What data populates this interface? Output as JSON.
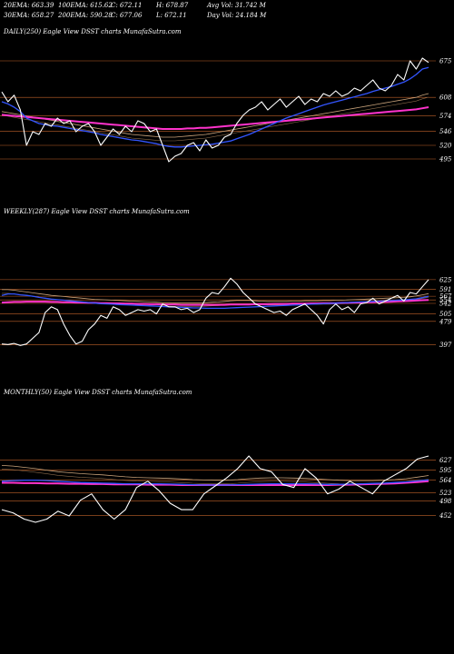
{
  "header": {
    "row1": [
      {
        "label": "20EMA: 663.39"
      },
      {
        "label": "100EMA: 615.62"
      },
      {
        "label": "C: 672.11"
      },
      {
        "label": "H: 678.87"
      },
      {
        "label": "Avg Vol: 31.742  M"
      }
    ],
    "row2": [
      {
        "label": "30EMA: 658.27"
      },
      {
        "label": "200EMA: 590.28"
      },
      {
        "label": "C: 677.06"
      },
      {
        "label": "L: 672.11"
      },
      {
        "label": "Day Vol: 24.184  M"
      }
    ]
  },
  "colors": {
    "background": "#000000",
    "price": "#ffffff",
    "ema_fast": "#3355ff",
    "ema_slow": "#ff33cc",
    "ema_mid": "#c8a27a",
    "grid": "#c0622a"
  },
  "chart_data": [
    {
      "type": "line",
      "title": "DAILY(250) Eagle   View  DSST charts MunafaSutra.com",
      "grid": true,
      "ylim": [
        470,
        695
      ],
      "yticks": [
        675,
        608,
        574,
        546,
        520,
        495
      ],
      "series": [
        {
          "name": "price",
          "values": [
            618,
            600,
            612,
            585,
            520,
            545,
            540,
            560,
            555,
            570,
            560,
            565,
            545,
            555,
            560,
            545,
            520,
            535,
            550,
            540,
            555,
            545,
            565,
            560,
            545,
            550,
            520,
            490,
            500,
            505,
            520,
            525,
            510,
            530,
            515,
            520,
            535,
            540,
            560,
            575,
            585,
            590,
            600,
            585,
            595,
            605,
            590,
            600,
            610,
            595,
            605,
            600,
            615,
            610,
            620,
            610,
            615,
            625,
            620,
            630,
            640,
            625,
            620,
            630,
            650,
            640,
            675,
            660,
            680,
            672
          ]
        },
        {
          "name": "ema20",
          "values": [
            600,
            596,
            590,
            582,
            570,
            565,
            560,
            558,
            556,
            555,
            553,
            551,
            549,
            547,
            545,
            543,
            540,
            538,
            536,
            534,
            532,
            530,
            529,
            527,
            525,
            523,
            520,
            518,
            517,
            517,
            518,
            519,
            520,
            521,
            522,
            524,
            526,
            528,
            532,
            536,
            540,
            545,
            550,
            555,
            560,
            565,
            570,
            574,
            578,
            582,
            586,
            590,
            594,
            597,
            600,
            603,
            606,
            609,
            612,
            615,
            619,
            622,
            625,
            628,
            632,
            636,
            642,
            650,
            660,
            663
          ]
        },
        {
          "name": "ema100",
          "values": [
            582,
            580,
            578,
            576,
            574,
            572,
            570,
            568,
            566,
            564,
            562,
            560,
            558,
            556,
            554,
            552,
            550,
            548,
            546,
            544,
            542,
            540,
            539,
            538,
            537,
            536,
            535,
            535,
            535,
            536,
            537,
            538,
            539,
            540,
            542,
            544,
            546,
            548,
            550,
            552,
            554,
            556,
            558,
            560,
            562,
            564,
            566,
            568,
            570,
            572,
            574,
            576,
            578,
            580,
            582,
            584,
            586,
            588,
            590,
            592,
            594,
            596,
            598,
            600,
            602,
            604,
            606,
            608,
            612,
            615
          ]
        },
        {
          "name": "ema200",
          "values": [
            576,
            575,
            574,
            573,
            572,
            571,
            570,
            569,
            568,
            567,
            566,
            565,
            564,
            563,
            562,
            561,
            560,
            559,
            558,
            557,
            556,
            555,
            554,
            553,
            552,
            551,
            550,
            550,
            550,
            550,
            551,
            551,
            552,
            552,
            553,
            554,
            555,
            556,
            557,
            558,
            559,
            560,
            561,
            562,
            563,
            564,
            565,
            566,
            567,
            568,
            569,
            570,
            571,
            572,
            573,
            574,
            575,
            576,
            577,
            578,
            579,
            580,
            581,
            582,
            583,
            584,
            585,
            586,
            588,
            590
          ]
        }
      ]
    },
    {
      "type": "line",
      "title": "WEEKLY(287) Eagle   View  DSST charts MunafaSutra.com",
      "grid": true,
      "ylim": [
        380,
        650
      ],
      "yticks": [
        625,
        591,
        567,
        554,
        542,
        505,
        479,
        397
      ],
      "series": [
        {
          "name": "price",
          "values": [
            400,
            398,
            402,
            395,
            400,
            420,
            440,
            510,
            530,
            520,
            470,
            430,
            400,
            410,
            450,
            470,
            500,
            490,
            530,
            520,
            500,
            510,
            520,
            515,
            520,
            505,
            540,
            530,
            530,
            520,
            525,
            510,
            520,
            560,
            580,
            575,
            600,
            630,
            610,
            580,
            560,
            540,
            530,
            520,
            510,
            515,
            500,
            520,
            530,
            540,
            520,
            500,
            470,
            520,
            540,
            520,
            530,
            510,
            540,
            545,
            560,
            540,
            550,
            560,
            570,
            550,
            580,
            575,
            600,
            625
          ]
        },
        {
          "name": "ema_fast",
          "values": [
            570,
            575,
            575,
            572,
            570,
            567,
            563,
            560,
            557,
            555,
            553,
            551,
            549,
            547,
            545,
            543,
            541,
            540,
            539,
            538,
            537,
            536,
            535,
            534,
            533,
            532,
            531,
            530,
            529,
            528,
            527,
            526,
            526,
            525,
            525,
            525,
            525,
            526,
            527,
            528,
            529,
            530,
            531,
            532,
            533,
            534,
            535,
            536,
            537,
            538,
            539,
            540,
            541,
            542,
            543,
            544,
            545,
            546,
            547,
            548,
            549,
            550,
            551,
            552,
            553,
            554,
            556,
            558,
            562,
            567
          ]
        },
        {
          "name": "ema_slow",
          "values": [
            545,
            546,
            547,
            547,
            548,
            548,
            548,
            548,
            547,
            547,
            546,
            546,
            545,
            545,
            544,
            544,
            543,
            543,
            542,
            542,
            541,
            541,
            540,
            540,
            539,
            539,
            538,
            538,
            538,
            537,
            537,
            537,
            537,
            537,
            537,
            537,
            537,
            538,
            538,
            538,
            538,
            539,
            539,
            539,
            540,
            540,
            540,
            541,
            541,
            541,
            542,
            542,
            543,
            543,
            543,
            544,
            544,
            545,
            545,
            546,
            546,
            547,
            547,
            548,
            549,
            550,
            551,
            552,
            553,
            554
          ]
        },
        {
          "name": "ema_mid",
          "values": [
            590,
            590,
            588,
            585,
            582,
            579,
            576,
            573,
            570,
            568,
            566,
            564,
            562,
            560,
            558,
            556,
            555,
            554,
            553,
            552,
            551,
            550,
            549,
            548,
            547,
            546,
            545,
            545,
            544,
            544,
            544,
            544,
            544,
            545,
            546,
            547,
            549,
            551,
            552,
            552,
            552,
            551,
            550,
            549,
            549,
            549,
            549,
            550,
            550,
            551,
            551,
            551,
            552,
            552,
            553,
            553,
            554,
            555,
            556,
            557,
            558,
            559,
            560,
            561,
            562,
            563,
            565,
            568,
            572,
            576
          ]
        }
      ]
    },
    {
      "type": "line",
      "title": "MONTHLY(50) Eagle   View  DSST charts MunafaSutra.com",
      "grid": true,
      "ylim": [
        430,
        660
      ],
      "yticks": [
        627,
        595,
        564,
        523,
        498,
        452
      ],
      "series": [
        {
          "name": "price",
          "values": [
            470,
            460,
            440,
            430,
            440,
            465,
            450,
            500,
            520,
            470,
            440,
            470,
            540,
            560,
            530,
            490,
            470,
            470,
            520,
            545,
            570,
            600,
            640,
            600,
            590,
            550,
            540,
            600,
            570,
            520,
            535,
            560,
            540,
            520,
            560,
            580,
            600,
            630,
            640
          ]
        },
        {
          "name": "ema_fast",
          "values": [
            560,
            562,
            563,
            563,
            562,
            560,
            558,
            556,
            555,
            554,
            553,
            552,
            552,
            552,
            552,
            551,
            550,
            549,
            548,
            548,
            548,
            549,
            550,
            551,
            552,
            552,
            552,
            552,
            551,
            550,
            550,
            551,
            552,
            553,
            554,
            556,
            558,
            561,
            564
          ]
        },
        {
          "name": "ema_slow",
          "values": [
            555,
            555,
            554,
            554,
            553,
            553,
            552,
            552,
            551,
            551,
            550,
            550,
            550,
            549,
            549,
            549,
            548,
            548,
            548,
            548,
            548,
            548,
            548,
            548,
            548,
            548,
            548,
            548,
            548,
            548,
            549,
            549,
            550,
            551,
            552,
            553,
            555,
            557,
            560
          ]
        },
        {
          "name": "ema_mid",
          "values": [
            610,
            608,
            604,
            600,
            595,
            590,
            587,
            584,
            582,
            580,
            577,
            574,
            572,
            571,
            570,
            569,
            567,
            565,
            564,
            563,
            563,
            565,
            568,
            570,
            571,
            571,
            570,
            569,
            567,
            565,
            563,
            562,
            562,
            562,
            563,
            565,
            568,
            573,
            578
          ]
        }
      ]
    }
  ]
}
